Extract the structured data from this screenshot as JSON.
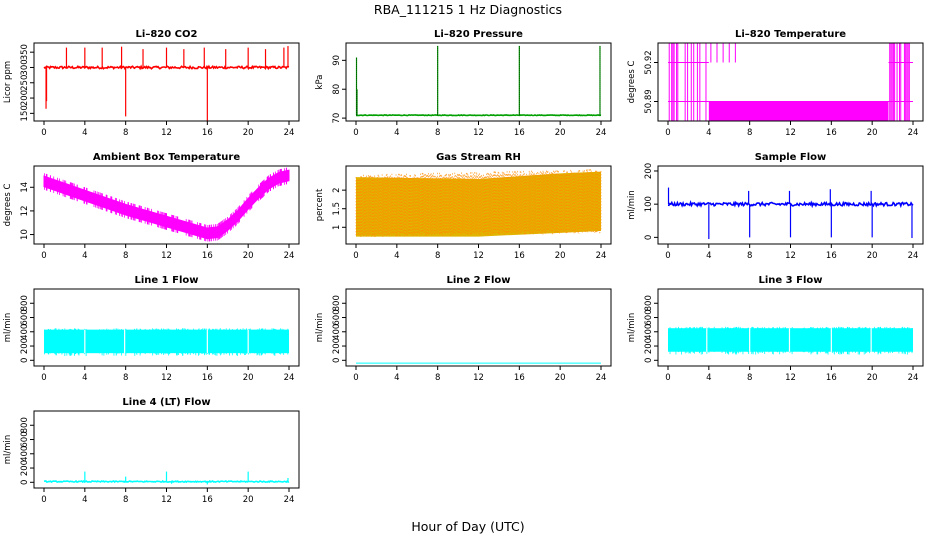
{
  "page": {
    "title": "RBA_111215  1 Hz Diagnostics",
    "xlabel": "Hour of Day (UTC)"
  },
  "chart_data": [
    {
      "type": "line",
      "title": "Li–820 CO2",
      "ylabel": "Licor ppm",
      "x_ticks": [
        0,
        4,
        8,
        12,
        16,
        20,
        24
      ],
      "xlim": [
        0,
        24
      ],
      "y_ticks": [
        150,
        200,
        250,
        300,
        350
      ],
      "ylim": [
        125,
        380
      ],
      "color": "#ff0000",
      "series": [
        {
          "x": [
            0,
            0.2,
            0.3,
            24
          ],
          "y": [
            300,
            298,
            300,
            300
          ]
        }
      ],
      "baseline": 300,
      "noise": 4,
      "spikes": [
        [
          0.2,
          165
        ],
        [
          0.25,
          190
        ],
        [
          2.2,
          365
        ],
        [
          4,
          365
        ],
        [
          5.7,
          365
        ],
        [
          7.6,
          368
        ],
        [
          8,
          140
        ],
        [
          9.7,
          360
        ],
        [
          12,
          365
        ],
        [
          13.7,
          360
        ],
        [
          15.7,
          365
        ],
        [
          16,
          123
        ],
        [
          17.8,
          360
        ],
        [
          20,
          365
        ],
        [
          21.7,
          360
        ],
        [
          23.5,
          365
        ],
        [
          23.9,
          370
        ]
      ]
    },
    {
      "type": "line",
      "title": "Li–820 Pressure",
      "ylabel": "kPa",
      "x_ticks": [
        0,
        4,
        8,
        12,
        16,
        20,
        24
      ],
      "xlim": [
        0,
        24
      ],
      "y_ticks": [
        70,
        80,
        90
      ],
      "ylim": [
        69,
        96
      ],
      "color": "#00a000",
      "baseline": 71,
      "noise": 0.1,
      "spikes": [
        [
          0.05,
          91
        ],
        [
          0.1,
          80
        ],
        [
          8,
          95
        ],
        [
          16,
          95
        ],
        [
          23.9,
          95
        ]
      ]
    },
    {
      "type": "line",
      "title": "Li–820 Temperature",
      "ylabel": "degrees C",
      "x_ticks": [
        0,
        4,
        8,
        12,
        16,
        20,
        24
      ],
      "xlim": [
        0,
        24
      ],
      "y_ticks": [
        50.89,
        50.92
      ],
      "ylim": [
        50.875,
        50.935
      ],
      "color": "#ff00ff",
      "levels": [
        50.89,
        50.92
      ],
      "regime": [
        {
          "from": 0,
          "to": 4,
          "pattern": "switching"
        },
        {
          "from": 4,
          "to": 21.6,
          "pattern": "low"
        },
        {
          "from": 21.6,
          "to": 24,
          "pattern": "switching"
        }
      ]
    },
    {
      "type": "area",
      "title": "Ambient Box Temperature",
      "ylabel": "degrees C",
      "x_ticks": [
        0,
        4,
        8,
        12,
        16,
        20,
        24
      ],
      "xlim": [
        0,
        24
      ],
      "y_ticks": [
        10,
        12,
        14
      ],
      "ylim": [
        9.2,
        15.8
      ],
      "color": "#ff00ff",
      "series": [
        {
          "name": "",
          "x": [
            0,
            2,
            4,
            6,
            8,
            10,
            12,
            14,
            16,
            17,
            18,
            19,
            20,
            21,
            22,
            23,
            24
          ],
          "y": [
            14.5,
            13.9,
            13.3,
            12.7,
            12.1,
            11.6,
            11.1,
            10.6,
            10.1,
            10.2,
            10.8,
            11.6,
            12.6,
            13.5,
            14.3,
            14.8,
            15.0
          ]
        }
      ],
      "band": 0.45
    },
    {
      "type": "area",
      "title": "Gas Stream RH",
      "ylabel": "percent",
      "x_ticks": [
        0,
        4,
        8,
        12,
        16,
        20,
        24
      ],
      "xlim": [
        0,
        24
      ],
      "y_ticks": [
        1.0,
        1.5,
        2.0
      ],
      "ylim": [
        0.55,
        2.65
      ],
      "color": "#ff8c00",
      "pattern_color": "#e0b400",
      "range": [
        [
          0,
          0.75,
          2.35
        ],
        [
          12,
          0.75,
          2.3
        ],
        [
          20,
          0.85,
          2.45
        ],
        [
          24,
          0.9,
          2.5
        ]
      ]
    },
    {
      "type": "line",
      "title": "Sample Flow",
      "ylabel": "ml/min",
      "x_ticks": [
        0,
        4,
        8,
        12,
        16,
        20,
        24
      ],
      "xlim": [
        0,
        24
      ],
      "y_ticks": [
        0,
        100,
        200
      ],
      "ylim": [
        -20,
        215
      ],
      "color": "#0000ff",
      "baseline": 100,
      "noise": 5,
      "spikes": [
        [
          0.05,
          150
        ],
        [
          4,
          -5
        ],
        [
          7.9,
          140
        ],
        [
          8,
          0
        ],
        [
          11.9,
          140
        ],
        [
          12,
          0
        ],
        [
          15.9,
          145
        ],
        [
          16,
          0
        ],
        [
          19.9,
          140
        ],
        [
          20,
          0
        ],
        [
          23.9,
          -2
        ]
      ]
    },
    {
      "type": "area",
      "title": "Line 1 Flow",
      "ylabel": "ml/min",
      "x_ticks": [
        0,
        4,
        8,
        12,
        16,
        20,
        24
      ],
      "xlim": [
        0,
        24
      ],
      "y_ticks": [
        0,
        200,
        400,
        600,
        800
      ],
      "ylim": [
        -80,
        1000
      ],
      "color": "#00ffff",
      "band_low": 100,
      "band_high": 430,
      "gaps": [
        4,
        7.9,
        16,
        20
      ]
    },
    {
      "type": "line",
      "title": "Line 2 Flow",
      "ylabel": "ml/min",
      "x_ticks": [
        0,
        4,
        8,
        12,
        16,
        20,
        24
      ],
      "xlim": [
        0,
        24
      ],
      "y_ticks": [
        0,
        200,
        400,
        600,
        800
      ],
      "ylim": [
        -80,
        1000
      ],
      "color": "#00ffff",
      "baseline": -40,
      "noise": 0
    },
    {
      "type": "area",
      "title": "Line 3 Flow",
      "ylabel": "ml/min",
      "x_ticks": [
        0,
        4,
        8,
        12,
        16,
        20,
        24
      ],
      "xlim": [
        0,
        24
      ],
      "y_ticks": [
        0,
        200,
        400,
        600,
        800
      ],
      "ylim": [
        -80,
        1000
      ],
      "color": "#00ffff",
      "band_low": 120,
      "band_high": 450,
      "gaps": [
        3.8,
        8,
        11.9,
        16,
        19.9
      ]
    },
    {
      "type": "line",
      "title": "Line 4 (LT) Flow",
      "ylabel": "ml/min",
      "x_ticks": [
        0,
        4,
        8,
        12,
        16,
        20,
        24
      ],
      "xlim": [
        0,
        24
      ],
      "y_ticks": [
        0,
        200,
        400,
        600,
        800
      ],
      "ylim": [
        -80,
        1000
      ],
      "color": "#00ffff",
      "baseline": 10,
      "noise": 8,
      "spikes": [
        [
          4,
          150
        ],
        [
          8,
          80
        ],
        [
          12,
          150
        ],
        [
          12.5,
          -20
        ],
        [
          16,
          -30
        ],
        [
          20,
          150
        ],
        [
          23.9,
          60
        ]
      ]
    }
  ]
}
